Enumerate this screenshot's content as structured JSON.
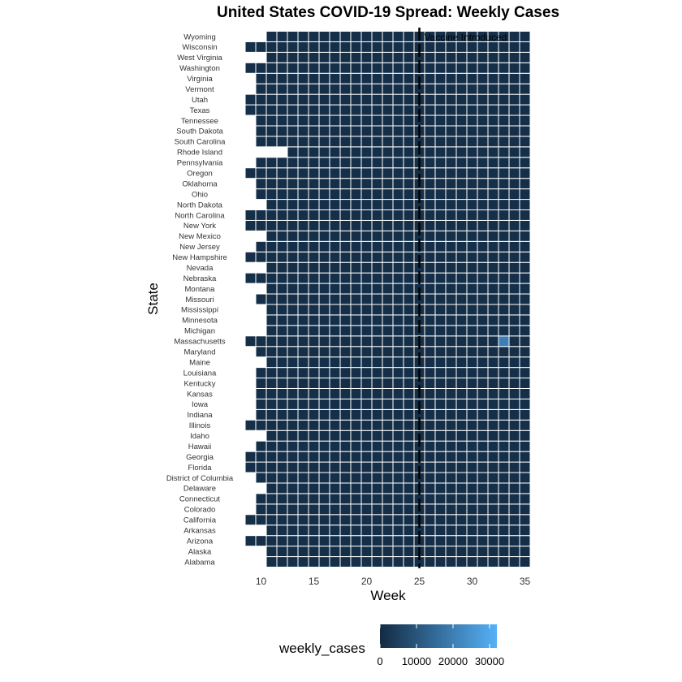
{
  "chart_data": {
    "type": "heatmap",
    "title": "United States COVID-19 Spread: Weekly Cases",
    "xlabel": "Week",
    "ylabel": "State",
    "x_ticks": [
      10,
      15,
      20,
      25,
      30,
      35
    ],
    "x_range": [
      8.5,
      35.5
    ],
    "states": [
      "Alabama",
      "Alaska",
      "Arizona",
      "Arkansas",
      "California",
      "Colorado",
      "Connecticut",
      "Delaware",
      "District of Columbia",
      "Florida",
      "Georgia",
      "Hawaii",
      "Idaho",
      "Illinois",
      "Indiana",
      "Iowa",
      "Kansas",
      "Kentucky",
      "Louisiana",
      "Maine",
      "Maryland",
      "Massachusetts",
      "Michigan",
      "Minnesota",
      "Mississippi",
      "Missouri",
      "Montana",
      "Nebraska",
      "Nevada",
      "New Hampshire",
      "New Jersey",
      "New Mexico",
      "New York",
      "North Carolina",
      "North Dakota",
      "Ohio",
      "Oklahoma",
      "Oregon",
      "Pennsylvania",
      "Rhode Island",
      "South Carolina",
      "South Dakota",
      "Tennessee",
      "Texas",
      "Utah",
      "Vermont",
      "Virginia",
      "Washington",
      "West Virginia",
      "Wisconsin",
      "Wyoming"
    ],
    "start_week": [
      11,
      11,
      9,
      11,
      9,
      10,
      10,
      11,
      10,
      9,
      9,
      10,
      11,
      9,
      10,
      10,
      10,
      10,
      10,
      11,
      10,
      9,
      11,
      11,
      11,
      10,
      11,
      9,
      11,
      9,
      10,
      11,
      9,
      9,
      11,
      10,
      10,
      9,
      10,
      13,
      10,
      10,
      10,
      9,
      9,
      10,
      10,
      9,
      11,
      9,
      11
    ],
    "end_week": 35,
    "weekly_cases_baseline": 1000,
    "highlight_cells": [
      {
        "state": "Massachusetts",
        "week": 33,
        "weekly_cases": 20000
      }
    ],
    "vline": {
      "week": 25,
      "label": "Vaccine Introduced"
    },
    "legend": {
      "title": "weekly_cases",
      "ticks": [
        0,
        10000,
        20000,
        30000
      ],
      "range": [
        0,
        32000
      ],
      "low_color": "#132B43",
      "high_color": "#56B1F7"
    },
    "grid": false,
    "legend_position": "bottom"
  }
}
